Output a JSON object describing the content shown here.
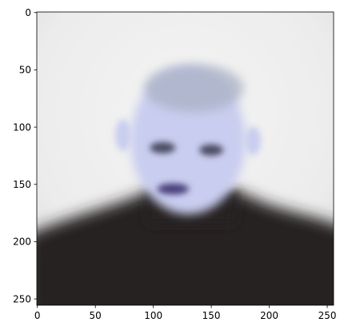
{
  "colors": {
    "background_light": "#efefef",
    "background_mid": "#e6e6e7",
    "skin": "#c9cdef",
    "hair": "#aab2c6",
    "eyes": "#4a4b62",
    "lips": "#4a3f7c",
    "sweater": "#272420",
    "axis": "#000000"
  },
  "chart_data": {
    "type": "image",
    "description_of_content": null,
    "x_ticks": [
      "0",
      "50",
      "100",
      "150",
      "200",
      "250"
    ],
    "x_tick_values": [
      0,
      50,
      100,
      150,
      200,
      250
    ],
    "y_ticks": [
      "0",
      "50",
      "100",
      "150",
      "200",
      "250"
    ],
    "y_tick_values": [
      0,
      50,
      100,
      150,
      200,
      250
    ],
    "xlim": [
      -0.5,
      255.5
    ],
    "ylim": [
      255.5,
      -0.5
    ],
    "image_size": [
      256,
      256
    ],
    "origin": "upper",
    "grid": false,
    "title": "",
    "xlabel": "",
    "ylabel": ""
  }
}
